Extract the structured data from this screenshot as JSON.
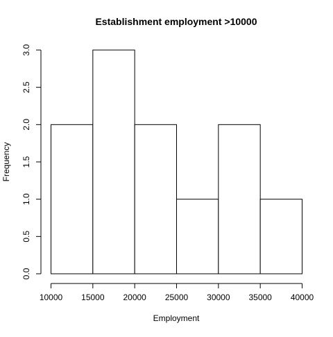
{
  "chart_data": {
    "type": "bar",
    "subtype": "histogram",
    "title": "Establishment employment >10000",
    "xlabel": "Employment",
    "ylabel": "Frequency",
    "bins": [
      {
        "x0": 10000,
        "x1": 15000,
        "count": 2
      },
      {
        "x0": 15000,
        "x1": 20000,
        "count": 3
      },
      {
        "x0": 20000,
        "x1": 25000,
        "count": 2
      },
      {
        "x0": 25000,
        "x1": 30000,
        "count": 1
      },
      {
        "x0": 30000,
        "x1": 35000,
        "count": 2
      },
      {
        "x0": 35000,
        "x1": 40000,
        "count": 1
      }
    ],
    "xlim": [
      10000,
      40000
    ],
    "ylim": [
      0,
      3
    ],
    "x_ticks": [
      10000,
      15000,
      20000,
      25000,
      30000,
      35000,
      40000
    ],
    "y_ticks": [
      0.0,
      0.5,
      1.0,
      1.5,
      2.0,
      2.5,
      3.0
    ],
    "x_tick_labels": [
      "10000",
      "15000",
      "20000",
      "25000",
      "30000",
      "35000",
      "40000"
    ],
    "y_tick_labels": [
      "0.0",
      "0.5",
      "1.0",
      "1.5",
      "2.0",
      "2.5",
      "3.0"
    ],
    "grid": false,
    "legend": "none",
    "bar_fill": "#ffffff",
    "bar_stroke": "#000000"
  }
}
